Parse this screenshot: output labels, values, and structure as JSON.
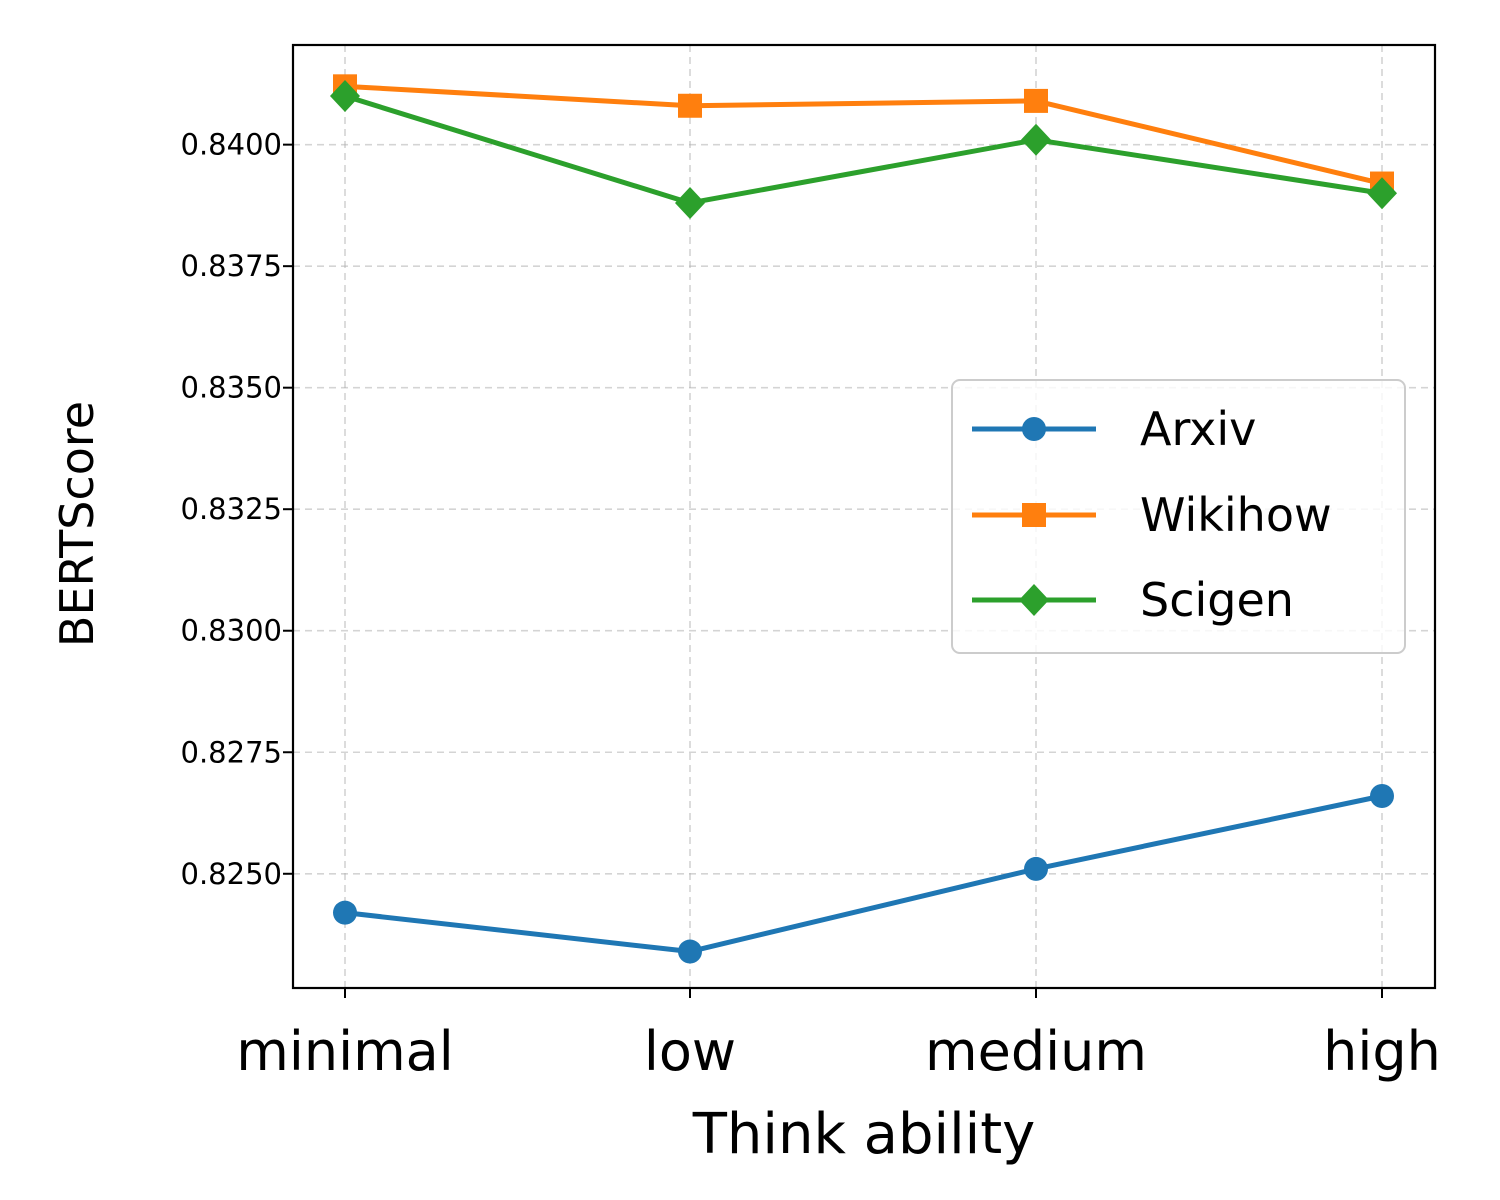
{
  "chart_data": {
    "type": "line",
    "title": "",
    "xlabel": "Think ability",
    "ylabel": "BERTScore",
    "categories": [
      "minimal",
      "low",
      "medium",
      "high"
    ],
    "ylim": [
      0.82265,
      0.84205
    ],
    "yticks": [
      0.825,
      0.8275,
      0.83,
      0.8325,
      0.835,
      0.8375,
      0.84
    ],
    "ytick_labels": [
      "0.8250",
      "0.8275",
      "0.8300",
      "0.8325",
      "0.8350",
      "0.8375",
      "0.8400"
    ],
    "grid": true,
    "legend_position": "center-right",
    "series": [
      {
        "name": "Arxiv",
        "color": "#1f77b4",
        "marker": "circle",
        "values": [
          0.8242,
          0.8234,
          0.8251,
          0.8266
        ]
      },
      {
        "name": "Wikihow",
        "color": "#ff7f0e",
        "marker": "square",
        "values": [
          0.8412,
          0.8408,
          0.8409,
          0.8392
        ]
      },
      {
        "name": "Scigen",
        "color": "#2ca02c",
        "marker": "diamond",
        "values": [
          0.841,
          0.8388,
          0.8401,
          0.839
        ]
      }
    ]
  }
}
